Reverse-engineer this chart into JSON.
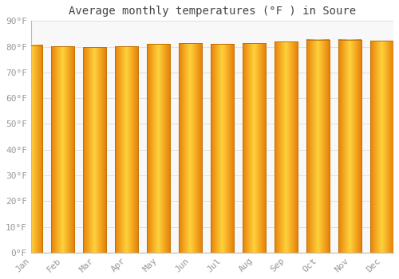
{
  "title": "Average monthly temperatures (°F ) in Soure",
  "months": [
    "Jan",
    "Feb",
    "Mar",
    "Apr",
    "May",
    "Jun",
    "Jul",
    "Aug",
    "Sep",
    "Oct",
    "Nov",
    "Dec"
  ],
  "values": [
    80.6,
    80.1,
    79.9,
    80.2,
    81.0,
    81.3,
    81.1,
    81.3,
    82.0,
    82.8,
    82.8,
    82.2
  ],
  "bar_left_color": "#E8820A",
  "bar_center_color": "#FFD050",
  "bar_right_color": "#E8820A",
  "bar_edge_color": "#C07000",
  "background_color": "#FFFFFF",
  "plot_bg_color": "#F8F8F8",
  "grid_color": "#E0E0E0",
  "ylim": [
    0,
    90
  ],
  "yticks": [
    0,
    10,
    20,
    30,
    40,
    50,
    60,
    70,
    80,
    90
  ],
  "ytick_labels": [
    "0°F",
    "10°F",
    "20°F",
    "30°F",
    "40°F",
    "50°F",
    "60°F",
    "70°F",
    "80°F",
    "90°F"
  ],
  "title_fontsize": 10,
  "tick_fontsize": 8,
  "font_family": "monospace",
  "tick_color": "#999999",
  "spine_color": "#BBBBBB"
}
